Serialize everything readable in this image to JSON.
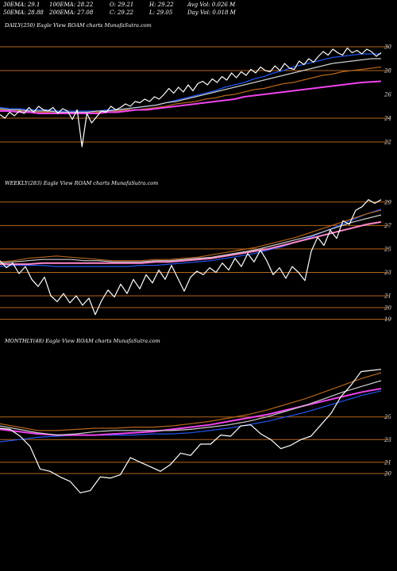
{
  "header": {
    "ema30_label": "30EMA: 29.1",
    "ema50_label": "50EMA: 28.88",
    "ema100_label": "100EMA: 28.22",
    "ema200_label": "200EMA: 27.08",
    "open_label": "O: 29.21",
    "close_label": "C: 29.22",
    "high_label": "H: 29.22",
    "low_label": "L: 29.05",
    "avg_vol_label": "Avg Vol: 0.026  M",
    "day_vol_label": "Day Vol: 0.018 M"
  },
  "colors": {
    "background": "#000000",
    "price": "#ffffff",
    "ema_fast": "#2255ee",
    "ema_magenta": "#ee44ee",
    "ema_pink": "#ff88cc",
    "level_line": "#b5651d",
    "ma_light": "#cccccc"
  },
  "chart_data": [
    {
      "type": "line",
      "title": "DAILY(250) Eagle  View  ROAM charts MunafaSutra.com",
      "ylim": [
        21,
        31
      ],
      "yticks": [
        30,
        28,
        26,
        24,
        22
      ],
      "hlines": [
        30,
        28,
        24,
        22
      ],
      "series": [
        {
          "role": "price",
          "color": "#ffffff",
          "values": [
            24.3,
            24.0,
            24.5,
            24.2,
            24.6,
            24.4,
            24.9,
            24.5,
            25.0,
            24.7,
            24.6,
            24.9,
            24.4,
            24.8,
            24.6,
            23.9,
            24.7,
            21.6,
            24.4,
            23.6,
            24.1,
            24.6,
            24.5,
            25.0,
            24.7,
            24.9,
            25.2,
            25.0,
            25.4,
            25.3,
            25.6,
            25.4,
            25.8,
            25.6,
            26.0,
            26.5,
            26.1,
            26.6,
            26.2,
            26.8,
            26.3,
            26.9,
            27.1,
            26.8,
            27.3,
            27.0,
            27.5,
            27.2,
            27.8,
            27.4,
            27.9,
            27.6,
            28.1,
            27.8,
            28.3,
            28.0,
            27.9,
            28.4,
            28.0,
            28.6,
            28.2,
            28.1,
            28.8,
            28.5,
            29.0,
            28.7,
            29.2,
            29.6,
            29.3,
            29.8,
            29.5,
            29.3,
            29.9,
            29.5,
            29.7,
            29.4,
            29.8,
            29.6,
            29.2,
            29.5
          ]
        },
        {
          "role": "ema",
          "color": "#2255ee",
          "values": [
            24.9,
            24.8,
            24.8,
            24.7,
            24.7,
            24.7,
            24.6,
            24.6,
            24.6,
            24.6,
            24.6,
            24.7,
            24.7,
            24.8,
            24.9,
            25.0,
            25.1,
            25.3,
            25.5,
            25.7,
            25.9,
            26.1,
            26.3,
            26.6,
            26.8,
            27.0,
            27.3,
            27.5,
            27.8,
            28.0,
            28.3,
            28.5,
            28.7,
            28.9,
            29.1,
            29.2,
            29.3,
            29.4,
            29.4,
            29.4
          ]
        },
        {
          "role": "ema",
          "color": "#cccccc",
          "values": [
            24.8,
            24.7,
            24.7,
            24.6,
            24.6,
            24.6,
            24.5,
            24.5,
            24.5,
            24.5,
            24.6,
            24.6,
            24.7,
            24.8,
            24.9,
            25.0,
            25.1,
            25.3,
            25.4,
            25.6,
            25.8,
            26.0,
            26.2,
            26.4,
            26.6,
            26.8,
            27.0,
            27.2,
            27.4,
            27.6,
            27.8,
            28.0,
            28.2,
            28.4,
            28.6,
            28.7,
            28.8,
            28.9,
            29.0,
            29.0
          ]
        },
        {
          "role": "ema",
          "color": "#b5651d",
          "values": [
            24.7,
            24.6,
            24.6,
            24.5,
            24.5,
            24.5,
            24.4,
            24.4,
            24.4,
            24.4,
            24.5,
            24.5,
            24.6,
            24.7,
            24.7,
            24.8,
            24.9,
            25.0,
            25.2,
            25.3,
            25.4,
            25.6,
            25.7,
            25.9,
            26.0,
            26.2,
            26.4,
            26.5,
            26.7,
            26.9,
            27.0,
            27.2,
            27.4,
            27.6,
            27.7,
            27.9,
            28.0,
            28.1,
            28.2,
            28.3
          ]
        },
        {
          "role": "ema",
          "color": "#ee44ee",
          "values": [
            24.6,
            24.6,
            24.5,
            24.5,
            24.4,
            24.4,
            24.4,
            24.4,
            24.4,
            24.4,
            24.4,
            24.5,
            24.5,
            24.6,
            24.7,
            24.7,
            24.8,
            24.9,
            25.0,
            25.1,
            25.2,
            25.3,
            25.4,
            25.5,
            25.6,
            25.8,
            25.9,
            26.0,
            26.1,
            26.2,
            26.3,
            26.4,
            26.5,
            26.6,
            26.7,
            26.8,
            26.9,
            27.0,
            27.05,
            27.1
          ]
        }
      ]
    },
    {
      "type": "line",
      "title": "WEEKLY(283) Eagle  View  ROAM charts MunafaSutra.com",
      "ylim": [
        18.5,
        30
      ],
      "yticks": [
        29,
        27,
        25,
        23,
        21,
        20,
        19
      ],
      "hlines": [
        29,
        27,
        25,
        23,
        21,
        20,
        19
      ],
      "series": [
        {
          "role": "price",
          "color": "#ffffff",
          "values": [
            24.0,
            23.4,
            23.8,
            22.9,
            23.5,
            22.4,
            21.8,
            22.6,
            21.0,
            20.5,
            21.2,
            20.4,
            21.0,
            20.2,
            20.8,
            19.4,
            20.6,
            21.5,
            20.9,
            22.0,
            21.2,
            22.4,
            21.6,
            22.8,
            22.1,
            23.2,
            22.4,
            23.6,
            22.5,
            21.4,
            22.6,
            23.1,
            22.8,
            23.4,
            23.0,
            23.8,
            23.2,
            24.2,
            23.5,
            24.6,
            23.9,
            24.9,
            24.0,
            22.8,
            23.4,
            22.5,
            23.5,
            23.0,
            22.3,
            24.8,
            26.0,
            25.3,
            26.6,
            25.9,
            27.4,
            27.1,
            28.3,
            28.6,
            29.2,
            28.9,
            29.2
          ]
        },
        {
          "role": "ema",
          "color": "#2255ee",
          "values": [
            23.5,
            23.6,
            23.6,
            23.6,
            23.5,
            23.5,
            23.5,
            23.5,
            23.5,
            23.5,
            23.6,
            23.6,
            23.7,
            23.8,
            23.9,
            24.0,
            24.2,
            24.4,
            24.6,
            24.9,
            25.2,
            25.6,
            26.0,
            26.5,
            27.0,
            27.5,
            28.0,
            28.4
          ]
        },
        {
          "role": "ema",
          "color": "#ff88cc",
          "values": [
            23.7,
            23.7,
            23.7,
            23.8,
            23.8,
            23.8,
            23.8,
            23.8,
            23.8,
            23.8,
            23.8,
            23.9,
            23.9,
            24.0,
            24.1,
            24.2,
            24.4,
            24.6,
            24.8,
            25.0,
            25.3,
            25.6,
            25.9,
            26.2,
            26.5,
            26.8,
            27.1,
            27.3
          ]
        },
        {
          "role": "ema",
          "color": "#cccccc",
          "values": [
            23.8,
            23.9,
            24.0,
            24.1,
            24.1,
            24.1,
            24.0,
            24.0,
            23.9,
            23.9,
            23.9,
            24.0,
            24.0,
            24.1,
            24.2,
            24.3,
            24.5,
            24.7,
            24.9,
            25.2,
            25.5,
            25.8,
            26.1,
            26.5,
            26.9,
            27.3,
            27.6,
            27.9
          ]
        },
        {
          "role": "ema",
          "color": "#b5651d",
          "values": [
            23.9,
            24.0,
            24.2,
            24.3,
            24.4,
            24.3,
            24.2,
            24.1,
            24.0,
            24.0,
            24.0,
            24.1,
            24.1,
            24.2,
            24.3,
            24.5,
            24.7,
            24.9,
            25.1,
            25.4,
            25.7,
            26.0,
            26.4,
            26.8,
            27.2,
            27.6,
            28.0,
            28.3
          ]
        }
      ]
    },
    {
      "type": "line",
      "title": "MONTHLY(48) Eagle  View  ROAM charts MunafaSutra.com",
      "ylim": [
        17,
        31
      ],
      "yticks": [
        25,
        23,
        21,
        20
      ],
      "hlines": [
        25,
        23,
        21,
        20
      ],
      "series": [
        {
          "role": "price",
          "color": "#ffffff",
          "values": [
            24.0,
            23.9,
            23.3,
            22.4,
            20.4,
            20.2,
            19.7,
            19.3,
            18.3,
            18.5,
            19.7,
            19.6,
            19.9,
            21.4,
            21.0,
            20.6,
            20.2,
            20.8,
            21.8,
            21.6,
            22.6,
            22.6,
            23.4,
            23.3,
            24.2,
            24.3,
            23.5,
            23.0,
            22.2,
            22.5,
            23.0,
            23.3,
            24.3,
            25.3,
            26.8,
            27.8,
            29.0,
            29.1,
            29.2
          ]
        },
        {
          "role": "ema",
          "color": "#2255ee",
          "values": [
            22.8,
            23.0,
            23.2,
            23.3,
            23.4,
            23.4,
            23.4,
            23.4,
            23.5,
            23.5,
            23.6,
            23.8,
            24.0,
            24.3,
            24.6,
            25.0,
            25.4,
            25.9,
            26.4,
            26.9,
            27.3
          ]
        },
        {
          "role": "ema",
          "color": "#ee44ee",
          "values": [
            23.9,
            23.7,
            23.5,
            23.4,
            23.4,
            23.4,
            23.5,
            23.6,
            23.7,
            23.9,
            24.1,
            24.3,
            24.6,
            24.9,
            25.2,
            25.6,
            26.0,
            26.4,
            26.8,
            27.2,
            27.5
          ]
        },
        {
          "role": "ema",
          "color": "#cccccc",
          "values": [
            24.2,
            23.9,
            23.6,
            23.4,
            23.5,
            23.7,
            23.8,
            23.8,
            23.8,
            23.8,
            23.9,
            24.1,
            24.3,
            24.6,
            25.0,
            25.5,
            26.0,
            26.6,
            27.2,
            27.7,
            28.2
          ]
        },
        {
          "role": "ema",
          "color": "#b5651d",
          "values": [
            24.4,
            24.1,
            23.8,
            23.8,
            23.9,
            24.0,
            24.0,
            24.1,
            24.1,
            24.2,
            24.4,
            24.6,
            24.9,
            25.2,
            25.6,
            26.1,
            26.6,
            27.2,
            27.8,
            28.4,
            28.9
          ]
        }
      ]
    }
  ]
}
